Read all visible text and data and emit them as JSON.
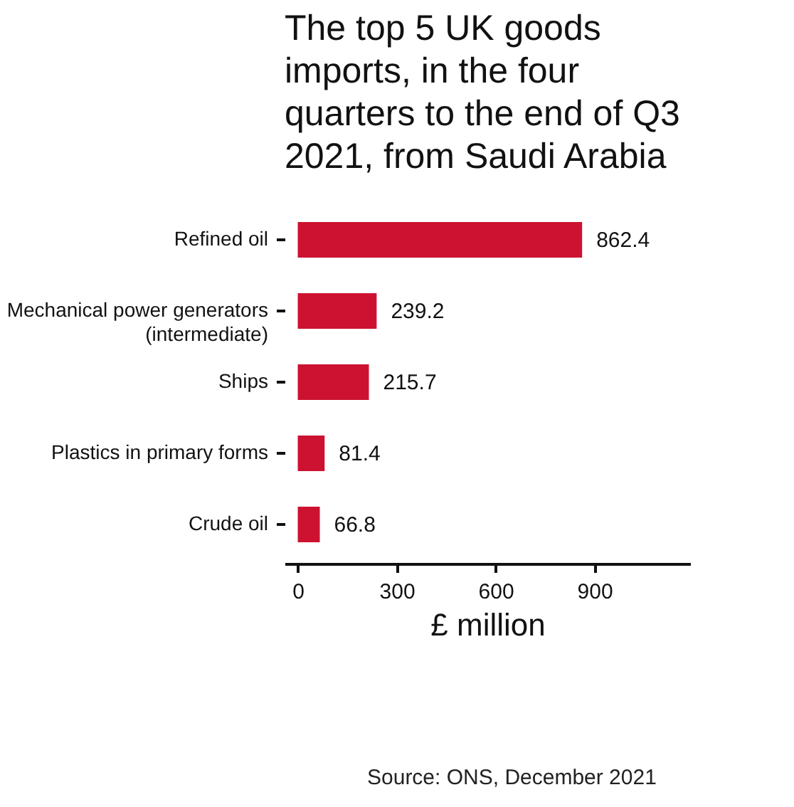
{
  "chart_data": {
    "type": "bar",
    "orientation": "horizontal",
    "title": "The top 5 UK goods imports, in the four quarters to the end of Q3 2021, from Saudi Arabia",
    "categories": [
      "Refined oil",
      "Mechanical power generators\n(intermediate)",
      "Ships",
      "Plastics in primary forms",
      "Crude oil"
    ],
    "values": [
      862.4,
      239.2,
      215.7,
      81.4,
      66.8
    ],
    "color": "#cc1230",
    "xlim": [
      -40,
      1190
    ],
    "xticks": [
      0,
      300,
      600,
      900
    ],
    "xlabel": "£ million",
    "data_labels": true,
    "grid": false,
    "annotations": [
      "Source: ONS, December 2021"
    ]
  }
}
